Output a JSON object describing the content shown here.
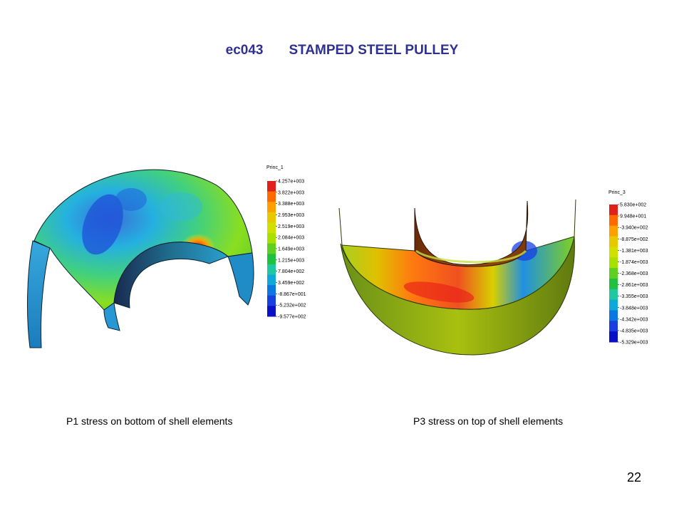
{
  "slide": {
    "code": "ec043",
    "title": "STAMPED STEEL PULLEY",
    "page_number": "22"
  },
  "left_figure": {
    "caption": "P1 stress on bottom of shell elements",
    "legend_title": "Princ_1",
    "legend_labels": [
      "4.257e+003",
      "3.822e+003",
      "3.388e+003",
      "2.953e+003",
      "2.519e+003",
      "2.084e+003",
      "1.649e+003",
      "1.215e+003",
      "7.804e+002",
      "3.459e+002",
      "-8.867e+001",
      "-5.232e+002",
      "-9.577e+002"
    ]
  },
  "right_figure": {
    "caption": "P3 stress on top of shell elements",
    "legend_title": "Princ_3",
    "legend_labels": [
      "5.830e+002",
      "9.948e+001",
      "-3.940e+002",
      "-8.875e+002",
      "-1.381e+003",
      "-1.874e+003",
      "-2.368e+003",
      "-2.861e+003",
      "-3.355e+003",
      "-3.848e+003",
      "-4.342e+003",
      "-4.835e+003",
      "-5.329e+003"
    ]
  },
  "colors": {
    "title": "#2e3192",
    "colorbar": [
      "#e0201a",
      "#ff6a00",
      "#ffa000",
      "#e8c800",
      "#d0e000",
      "#a8e000",
      "#60d020",
      "#20c040",
      "#20c8a0",
      "#10a8d8",
      "#0a78e0",
      "#1840e0",
      "#0a10c8"
    ]
  }
}
